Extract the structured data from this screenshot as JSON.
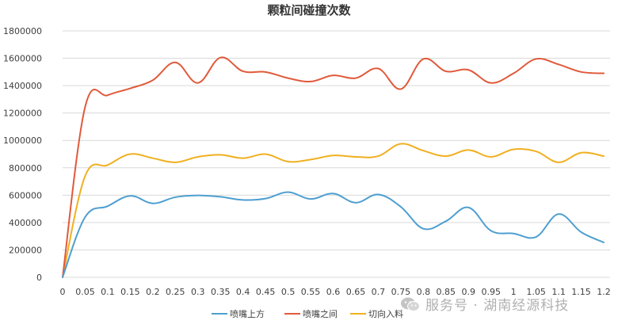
{
  "chart_data": {
    "type": "line",
    "title": "颗粒间碰撞次数",
    "xlabel": "",
    "ylabel": "",
    "categories": [
      "0",
      "0.05",
      "0.1",
      "0.15",
      "0.2",
      "0.25",
      "0.3",
      "0.35",
      "0.4",
      "0.45",
      "0.5",
      "0.55",
      "0.6",
      "0.65",
      "0.7",
      "0.75",
      "0.8",
      "0.85",
      "0.9",
      "0.95",
      "1",
      "1.05",
      "1.1",
      "1.15",
      "1.2"
    ],
    "ylim": [
      0,
      1800000
    ],
    "yticks": [
      0,
      200000,
      400000,
      600000,
      800000,
      1000000,
      1200000,
      1400000,
      1600000,
      1800000
    ],
    "grid": true,
    "legend_position": "bottom",
    "series": [
      {
        "name": "喷嘴上方",
        "color": "#4e9fd0",
        "values": [
          0,
          440000,
          520000,
          595000,
          540000,
          585000,
          598000,
          588000,
          565000,
          575000,
          622000,
          572000,
          612000,
          545000,
          605000,
          515000,
          355000,
          410000,
          510000,
          340000,
          320000,
          295000,
          462000,
          330000,
          255000
        ]
      },
      {
        "name": "喷嘴之间",
        "color": "#e05a3b",
        "values": [
          0,
          1245000,
          1330000,
          1380000,
          1440000,
          1570000,
          1420000,
          1605000,
          1505000,
          1500000,
          1455000,
          1430000,
          1475000,
          1455000,
          1525000,
          1375000,
          1595000,
          1505000,
          1515000,
          1420000,
          1490000,
          1595000,
          1555000,
          1500000,
          1490000
        ]
      },
      {
        "name": "切向入料",
        "color": "#f0b020",
        "values": [
          0,
          740000,
          820000,
          900000,
          870000,
          840000,
          880000,
          895000,
          870000,
          900000,
          845000,
          860000,
          890000,
          880000,
          885000,
          975000,
          925000,
          885000,
          930000,
          880000,
          935000,
          920000,
          840000,
          910000,
          885000
        ]
      }
    ]
  },
  "watermark": {
    "text": "服务号 · 湖南经源科技",
    "icon": "wechat-icon"
  }
}
